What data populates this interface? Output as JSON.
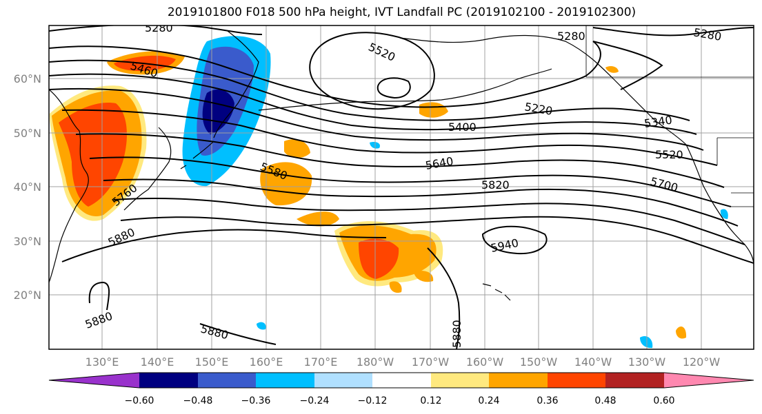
{
  "title": "2019101800 F018 500 hPa height, IVT Landfall PC (2019102100 - 2019102300)",
  "map": {
    "latitude_labels": [
      "60°N",
      "50°N",
      "40°N",
      "30°N",
      "20°N"
    ],
    "longitude_labels": [
      "130°E",
      "140°E",
      "150°E",
      "160°E",
      "170°E",
      "180°W",
      "170°W",
      "160°W",
      "150°W",
      "140°W",
      "130°W",
      "120°W"
    ],
    "height_contour_labels": [
      "5280",
      "5520",
      "5280",
      "5280",
      "5460",
      "5220",
      "5340",
      "5400",
      "5640",
      "5580",
      "5520",
      "5760",
      "5820",
      "5700",
      "5880",
      "5940",
      "5880",
      "5880",
      "5880"
    ]
  },
  "colorbar": {
    "tick_labels": [
      "−0.60",
      "−0.48",
      "−0.36",
      "−0.24",
      "−0.12",
      "0.12",
      "0.24",
      "0.36",
      "0.48",
      "0.60"
    ],
    "colors": [
      "#9932cc",
      "#000080",
      "#3a5bcc",
      "#00bfff",
      "#b0e0ff",
      "#ffffff",
      "#ffe97f",
      "#ffa500",
      "#ff4500",
      "#b22222",
      "#ff88b0"
    ]
  },
  "colors": {
    "outline": "#000000",
    "grid": "#a0a0a0",
    "tick_text": "#808080"
  }
}
